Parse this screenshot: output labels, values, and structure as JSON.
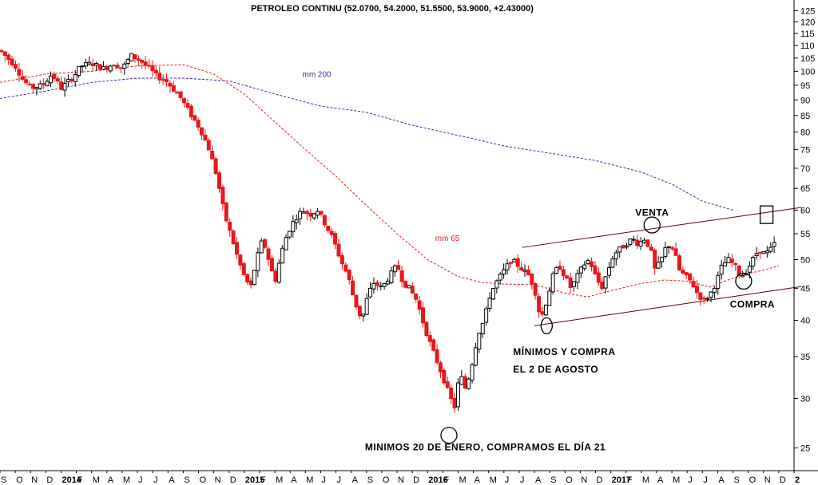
{
  "chart_data": {
    "type": "candlestick",
    "title": "PETROLEO CONTINU (52.0700, 54.2000, 51.5500, 53.9000, +2.43000)",
    "y_scale": "log",
    "ylim": [
      23,
      127
    ],
    "y_ticks": [
      25,
      30,
      35,
      40,
      45,
      50,
      55,
      60,
      65,
      70,
      75,
      80,
      85,
      90,
      95,
      100,
      105,
      110,
      115,
      120,
      125
    ],
    "x_months": [
      "S",
      "O",
      "N",
      "D",
      "2014",
      "F",
      "M",
      "A",
      "M",
      "J",
      "J",
      "A",
      "S",
      "O",
      "N",
      "D",
      "2015",
      "F",
      "M",
      "A",
      "M",
      "J",
      "J",
      "A",
      "S",
      "O",
      "N",
      "D",
      "2016",
      "F",
      "M",
      "A",
      "M",
      "J",
      "J",
      "A",
      "S",
      "O",
      "N",
      "D",
      "2017",
      "F",
      "M",
      "A",
      "M",
      "J",
      "J",
      "A",
      "S",
      "O",
      "N",
      "D",
      "2"
    ],
    "x_range": [
      0,
      52
    ],
    "colors": {
      "up": "#000000",
      "down": "#e8171b",
      "ma65": "#e8171b",
      "ma200": "#3a2aa0",
      "channel": "#5a0000",
      "grid": "#bdbdbd"
    },
    "anchors": [
      [
        0.0,
        108
      ],
      [
        0.5,
        105
      ],
      [
        1.0,
        102
      ],
      [
        1.5,
        97
      ],
      [
        2.0,
        94
      ],
      [
        2.8,
        95
      ],
      [
        3.4,
        99
      ],
      [
        4.0,
        94
      ],
      [
        4.8,
        98
      ],
      [
        5.3,
        102
      ],
      [
        6.0,
        103
      ],
      [
        6.8,
        101
      ],
      [
        7.5,
        103
      ],
      [
        8.0,
        101
      ],
      [
        8.6,
        106
      ],
      [
        9.2,
        104
      ],
      [
        9.8,
        101
      ],
      [
        10.3,
        98
      ],
      [
        10.8,
        97
      ],
      [
        11.3,
        94
      ],
      [
        11.8,
        91
      ],
      [
        12.4,
        86
      ],
      [
        13.1,
        81
      ],
      [
        13.7,
        75
      ],
      [
        14.2,
        68
      ],
      [
        14.7,
        59
      ],
      [
        15.2,
        54
      ],
      [
        15.6,
        50
      ],
      [
        16.0,
        47
      ],
      [
        16.4,
        45
      ],
      [
        16.8,
        50
      ],
      [
        17.2,
        54
      ],
      [
        17.6,
        50
      ],
      [
        18.0,
        46
      ],
      [
        18.4,
        51
      ],
      [
        18.8,
        55
      ],
      [
        19.3,
        58
      ],
      [
        19.8,
        60
      ],
      [
        20.3,
        59
      ],
      [
        20.8,
        60
      ],
      [
        21.3,
        57
      ],
      [
        21.8,
        54
      ],
      [
        22.3,
        50
      ],
      [
        22.8,
        47
      ],
      [
        23.2,
        43
      ],
      [
        23.7,
        40
      ],
      [
        24.1,
        44
      ],
      [
        24.5,
        46
      ],
      [
        25.0,
        45
      ],
      [
        25.5,
        47
      ],
      [
        26.0,
        49
      ],
      [
        26.4,
        46
      ],
      [
        26.8,
        45
      ],
      [
        27.3,
        43
      ],
      [
        27.8,
        39
      ],
      [
        28.3,
        36
      ],
      [
        28.7,
        34
      ],
      [
        29.1,
        32
      ],
      [
        29.5,
        30
      ],
      [
        29.8,
        29
      ],
      [
        30.1,
        33
      ],
      [
        30.5,
        31
      ],
      [
        30.9,
        34
      ],
      [
        31.3,
        38
      ],
      [
        31.7,
        40
      ],
      [
        32.1,
        44
      ],
      [
        32.5,
        46
      ],
      [
        33.0,
        48
      ],
      [
        33.5,
        50
      ],
      [
        33.9,
        49
      ],
      [
        34.3,
        48
      ],
      [
        34.7,
        47
      ],
      [
        35.1,
        44
      ],
      [
        35.4,
        40
      ],
      [
        35.8,
        43
      ],
      [
        36.2,
        47
      ],
      [
        36.6,
        49
      ],
      [
        37.0,
        47
      ],
      [
        37.4,
        45
      ],
      [
        37.8,
        47
      ],
      [
        38.2,
        49
      ],
      [
        38.6,
        50
      ],
      [
        39.0,
        47
      ],
      [
        39.4,
        45
      ],
      [
        39.8,
        48
      ],
      [
        40.2,
        51
      ],
      [
        40.6,
        52
      ],
      [
        41.0,
        53
      ],
      [
        41.4,
        54
      ],
      [
        41.8,
        53
      ],
      [
        42.2,
        54
      ],
      [
        42.6,
        52
      ],
      [
        42.9,
        48
      ],
      [
        43.3,
        50
      ],
      [
        43.7,
        53
      ],
      [
        44.1,
        52
      ],
      [
        44.5,
        48
      ],
      [
        44.9,
        47
      ],
      [
        45.3,
        46
      ],
      [
        45.7,
        44
      ],
      [
        46.1,
        43
      ],
      [
        46.5,
        44
      ],
      [
        46.9,
        46
      ],
      [
        47.3,
        49
      ],
      [
        47.7,
        50
      ],
      [
        48.1,
        49
      ],
      [
        48.5,
        47
      ],
      [
        48.9,
        48
      ],
      [
        49.3,
        50
      ],
      [
        49.7,
        52
      ],
      [
        50.1,
        51
      ],
      [
        50.5,
        52
      ],
      [
        50.9,
        54
      ]
    ],
    "series": [
      {
        "name": "mm 200",
        "points": [
          [
            0,
            90.5
          ],
          [
            3,
            93
          ],
          [
            6,
            96
          ],
          [
            9,
            97.5
          ],
          [
            12,
            97.5
          ],
          [
            15,
            96.5
          ],
          [
            18,
            92
          ],
          [
            21,
            88
          ],
          [
            24,
            86
          ],
          [
            27,
            82
          ],
          [
            30,
            79
          ],
          [
            33,
            76
          ],
          [
            36,
            74
          ],
          [
            39,
            72
          ],
          [
            42,
            69
          ],
          [
            44,
            66
          ],
          [
            46,
            62
          ],
          [
            48,
            60
          ]
        ]
      },
      {
        "name": "mm 65",
        "points": [
          [
            0,
            96
          ],
          [
            3,
            99
          ],
          [
            6,
            100
          ],
          [
            9,
            102
          ],
          [
            12,
            102.5
          ],
          [
            14,
            99
          ],
          [
            16,
            92
          ],
          [
            18,
            83
          ],
          [
            20,
            75
          ],
          [
            22,
            68
          ],
          [
            24,
            61
          ],
          [
            26,
            55
          ],
          [
            28,
            50
          ],
          [
            30,
            47
          ],
          [
            31.5,
            46
          ],
          [
            33,
            45.7
          ],
          [
            35,
            45.6
          ],
          [
            37,
            44.2
          ],
          [
            38.5,
            43.6
          ],
          [
            40,
            44.6
          ],
          [
            42,
            45.8
          ],
          [
            43.5,
            46.4
          ],
          [
            45,
            46.2
          ],
          [
            46.5,
            45.2
          ],
          [
            47.5,
            46.2
          ],
          [
            48.5,
            47.2
          ],
          [
            50,
            48.1
          ],
          [
            51,
            48.9
          ]
        ]
      }
    ],
    "channel_lines": [
      [
        [
          34.2,
          52.3
        ],
        [
          52.5,
          60.6
        ]
      ],
      [
        [
          35.0,
          39.2
        ],
        [
          52.5,
          45.3
        ]
      ]
    ],
    "annotations": [
      {
        "text": "mm 200",
        "x": 19.8,
        "y": 98,
        "color": "#3a2aa0"
      },
      {
        "text": "mm 65",
        "x": 28.5,
        "y": 53.6,
        "color": "#e8171b"
      },
      {
        "text": "VENTA",
        "x": 41.6,
        "y": 58.8,
        "color": "#000000"
      },
      {
        "text": "COMPRA",
        "x": 47.8,
        "y": 41.9,
        "color": "#000000"
      },
      {
        "text": "MÍNIMOS Y COMPRA",
        "x": 33.6,
        "y": 35.2,
        "color": "#000000"
      },
      {
        "text": "EL 2 DE AGOSTO",
        "x": 33.6,
        "y": 33.0,
        "color": "#000000"
      },
      {
        "text": "MINIMOS 20 DE ENERO, COMPRAMOS EL DÍA 21",
        "x": 23.9,
        "y": 24.8,
        "color": "#000000"
      }
    ],
    "markers": [
      {
        "shape": "circle",
        "x": 29.4,
        "y": 26.2
      },
      {
        "shape": "ellipse",
        "x": 35.8,
        "y": 39.2
      },
      {
        "shape": "circle",
        "x": 42.7,
        "y": 56.8
      },
      {
        "shape": "circle",
        "x": 48.7,
        "y": 46.2
      },
      {
        "shape": "square",
        "x": 50.2,
        "y": 59.0
      }
    ],
    "grid": false
  }
}
